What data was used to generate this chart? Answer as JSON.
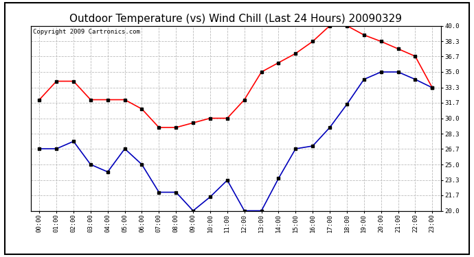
{
  "title": "Outdoor Temperature (vs) Wind Chill (Last 24 Hours) 20090329",
  "copyright": "Copyright 2009 Cartronics.com",
  "hours": [
    "00:00",
    "01:00",
    "02:00",
    "03:00",
    "04:00",
    "05:00",
    "06:00",
    "07:00",
    "08:00",
    "09:00",
    "10:00",
    "11:00",
    "12:00",
    "13:00",
    "14:00",
    "15:00",
    "16:00",
    "17:00",
    "18:00",
    "19:00",
    "20:00",
    "21:00",
    "22:00",
    "23:00"
  ],
  "outdoor_temp": [
    32.0,
    34.0,
    34.0,
    32.0,
    32.0,
    32.0,
    31.0,
    29.0,
    29.0,
    29.5,
    30.0,
    30.0,
    32.0,
    35.0,
    36.0,
    37.0,
    38.3,
    40.0,
    40.0,
    39.0,
    38.3,
    37.5,
    36.7,
    33.3
  ],
  "wind_chill": [
    26.7,
    26.7,
    27.5,
    25.0,
    24.2,
    26.7,
    25.0,
    22.0,
    22.0,
    20.0,
    21.5,
    23.3,
    20.0,
    20.0,
    23.5,
    26.7,
    27.0,
    29.0,
    31.5,
    34.2,
    35.0,
    35.0,
    34.2,
    33.3
  ],
  "temp_color": "#ff0000",
  "chill_color": "#0000bb",
  "marker": "s",
  "marker_color": "#000000",
  "marker_size": 3,
  "line_width": 1.2,
  "ylim_min": 20.0,
  "ylim_max": 40.0,
  "yticks": [
    20.0,
    21.7,
    23.3,
    25.0,
    26.7,
    28.3,
    30.0,
    31.7,
    33.3,
    35.0,
    36.7,
    38.3,
    40.0
  ],
  "background_color": "#ffffff",
  "plot_bg_color": "#ffffff",
  "grid_color": "#bbbbbb",
  "title_fontsize": 11,
  "copyright_fontsize": 6.5
}
